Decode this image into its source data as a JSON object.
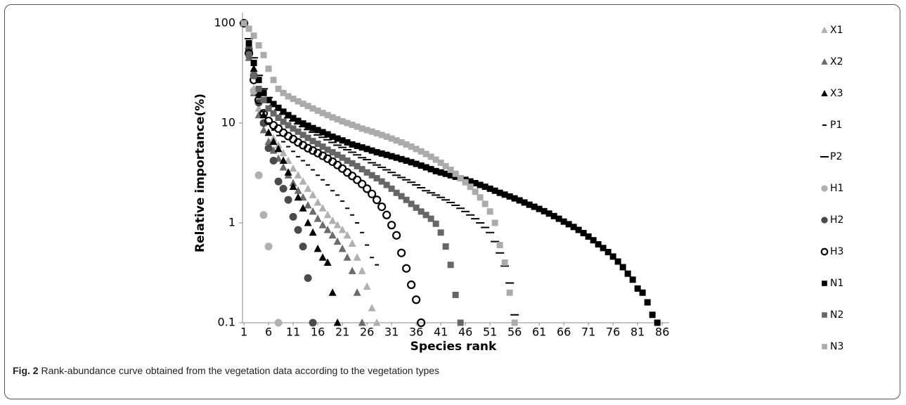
{
  "chart_data": {
    "type": "scatter",
    "y_label": "Relative importance(%)",
    "x_label": "Species rank",
    "caption_label": "Fig. 2",
    "caption": "Rank-abundance curve obtained from the vegetation data according to the vegetation types",
    "xlim": [
      0.7,
      87.4
    ],
    "xticks": [
      1,
      6,
      11,
      16,
      21,
      26,
      31,
      36,
      41,
      46,
      51,
      56,
      61,
      66,
      71,
      76,
      81,
      86
    ],
    "ylim": [
      0.1,
      100
    ],
    "yticks": [
      0.1,
      1,
      10,
      100
    ],
    "log_y": true,
    "grid": false,
    "legend": "right",
    "series": [
      {
        "name": "X1",
        "color": "#b0b0b0",
        "marker": "triangle",
        "x": [
          1,
          2,
          3,
          4,
          5,
          6,
          7,
          8,
          9,
          10,
          11,
          12,
          13,
          14,
          15,
          16,
          17,
          18,
          19,
          20,
          21,
          22,
          23,
          24,
          25,
          26,
          27,
          28
        ],
        "values": [
          100,
          50,
          22,
          14,
          10,
          8,
          7,
          6,
          5,
          4.2,
          3.5,
          3,
          2.6,
          2.2,
          1.9,
          1.6,
          1.4,
          1.2,
          1.05,
          0.95,
          0.85,
          0.75,
          0.62,
          0.45,
          0.33,
          0.23,
          0.14,
          0.1
        ]
      },
      {
        "name": "X2",
        "color": "#6b6b6b",
        "marker": "triangle",
        "x": [
          1,
          2,
          3,
          4,
          5,
          6,
          7,
          8,
          9,
          10,
          11,
          12,
          13,
          14,
          15,
          16,
          17,
          18,
          19,
          20,
          21,
          22,
          23,
          24,
          25
        ],
        "values": [
          100,
          45,
          20,
          12,
          8.5,
          6.5,
          5.3,
          4.4,
          3.6,
          3,
          2.5,
          2.1,
          1.8,
          1.5,
          1.3,
          1.1,
          0.95,
          0.85,
          0.75,
          0.65,
          0.55,
          0.45,
          0.33,
          0.2,
          0.1
        ]
      },
      {
        "name": "X3",
        "color": "#000000",
        "marker": "triangle",
        "x": [
          1,
          2,
          3,
          4,
          5,
          6,
          7,
          8,
          9,
          10,
          11,
          12,
          13,
          14,
          15,
          16,
          17,
          18,
          19,
          20
        ],
        "values": [
          100,
          60,
          35,
          20,
          12,
          8,
          6.5,
          5.5,
          4.2,
          3.2,
          2.3,
          1.8,
          1.4,
          1.0,
          0.8,
          0.55,
          0.45,
          0.4,
          0.2,
          0.1
        ]
      },
      {
        "name": "P1",
        "color": "#000000",
        "marker": "dash",
        "x": [
          1,
          2,
          3,
          4,
          5,
          6,
          7,
          8,
          9,
          10,
          11,
          12,
          13,
          14,
          15,
          16,
          17,
          18,
          19,
          20,
          21,
          22,
          23,
          24,
          25,
          26,
          27,
          28
        ],
        "values": [
          100,
          55,
          30,
          18,
          13,
          10,
          8.5,
          7.5,
          6.5,
          5.8,
          5.2,
          4.6,
          4.2,
          3.8,
          3.4,
          3.0,
          2.7,
          2.4,
          2.1,
          1.9,
          1.65,
          1.4,
          1.2,
          1.0,
          0.8,
          0.6,
          0.45,
          0.38
        ]
      },
      {
        "name": "P2",
        "color": "#000000",
        "marker": "dash-long",
        "x": [
          1,
          2,
          3,
          4,
          5,
          6,
          7,
          8,
          9,
          10,
          11,
          12,
          13,
          14,
          15,
          16,
          17,
          18,
          19,
          20,
          21,
          22,
          23,
          24,
          25,
          26,
          27,
          28,
          29,
          30,
          31,
          32,
          33,
          34,
          35,
          36,
          37,
          38,
          39,
          40,
          41,
          42,
          43,
          44,
          45,
          46,
          47,
          48,
          49,
          50,
          51,
          52,
          53,
          54,
          55,
          56
        ],
        "values": [
          100,
          70,
          45,
          30,
          22,
          18,
          15,
          13.5,
          12.3,
          11.3,
          10.5,
          9.8,
          9.2,
          8.6,
          8.1,
          7.6,
          7.2,
          6.8,
          6.4,
          6.0,
          5.7,
          5.4,
          5.1,
          4.8,
          4.5,
          4.3,
          4.0,
          3.8,
          3.6,
          3.4,
          3.2,
          3.0,
          2.85,
          2.7,
          2.55,
          2.4,
          2.25,
          2.1,
          2.0,
          1.9,
          1.8,
          1.7,
          1.6,
          1.5,
          1.4,
          1.3,
          1.2,
          1.1,
          1.0,
          0.9,
          0.8,
          0.65,
          0.5,
          0.37,
          0.25,
          0.12
        ]
      },
      {
        "name": "H1",
        "color": "#b0b0b0",
        "marker": "circle",
        "x": [
          1,
          3,
          4,
          5,
          6,
          8
        ],
        "values": [
          100,
          21,
          3,
          1.2,
          0.58,
          0.1
        ]
      },
      {
        "name": "H2",
        "color": "#4a4a4a",
        "marker": "circle",
        "x": [
          1,
          2,
          3,
          4,
          5,
          6,
          7,
          8,
          9,
          10,
          11,
          12,
          13,
          14,
          15
        ],
        "values": [
          100,
          55,
          30,
          16,
          10,
          5.6,
          4.2,
          2.6,
          2.2,
          1.7,
          1.15,
          0.85,
          0.58,
          0.28,
          0.1
        ]
      },
      {
        "name": "H3",
        "color": "#000000",
        "marker": "open-circle",
        "x": [
          1,
          2,
          3,
          4,
          5,
          6,
          7,
          8,
          9,
          10,
          11,
          12,
          13,
          14,
          15,
          16,
          17,
          18,
          19,
          20,
          21,
          22,
          23,
          24,
          25,
          26,
          27,
          28,
          29,
          30,
          31,
          32,
          33,
          34,
          35,
          36,
          37
        ],
        "values": [
          100,
          50,
          27,
          17,
          12.5,
          10.5,
          9.5,
          8.8,
          8.0,
          7.4,
          6.9,
          6.4,
          6.0,
          5.6,
          5.3,
          5.0,
          4.7,
          4.4,
          4.1,
          3.8,
          3.5,
          3.2,
          2.95,
          2.7,
          2.45,
          2.2,
          1.95,
          1.7,
          1.45,
          1.2,
          0.95,
          0.75,
          0.5,
          0.35,
          0.24,
          0.17,
          0.1
        ]
      },
      {
        "name": "N1",
        "color": "#000000",
        "marker": "square",
        "x": [
          1,
          2,
          3,
          4,
          5,
          6,
          7,
          8,
          9,
          10,
          11,
          12,
          13,
          14,
          15,
          16,
          17,
          18,
          19,
          20,
          21,
          22,
          23,
          24,
          25,
          26,
          27,
          28,
          29,
          30,
          31,
          32,
          33,
          34,
          35,
          36,
          37,
          38,
          39,
          40,
          41,
          42,
          43,
          44,
          45,
          46,
          47,
          48,
          49,
          50,
          51,
          52,
          53,
          54,
          55,
          56,
          57,
          58,
          59,
          60,
          61,
          62,
          63,
          64,
          65,
          66,
          67,
          68,
          69,
          70,
          71,
          72,
          73,
          74,
          75,
          76,
          77,
          78,
          79,
          80,
          81,
          82,
          83,
          84,
          85
        ],
        "values": [
          100,
          63,
          40,
          27,
          20,
          17,
          15.5,
          14.2,
          13,
          12,
          11.2,
          10.5,
          9.9,
          9.4,
          8.9,
          8.5,
          8.1,
          7.7,
          7.3,
          7.0,
          6.7,
          6.4,
          6.1,
          5.9,
          5.7,
          5.5,
          5.3,
          5.1,
          4.95,
          4.8,
          4.65,
          4.5,
          4.35,
          4.2,
          4.05,
          3.9,
          3.75,
          3.6,
          3.45,
          3.3,
          3.2,
          3.1,
          3.0,
          2.9,
          2.8,
          2.7,
          2.6,
          2.5,
          2.4,
          2.3,
          2.2,
          2.1,
          2.0,
          1.92,
          1.84,
          1.76,
          1.68,
          1.6,
          1.52,
          1.45,
          1.38,
          1.31,
          1.24,
          1.17,
          1.1,
          1.03,
          0.97,
          0.91,
          0.85,
          0.79,
          0.73,
          0.67,
          0.61,
          0.56,
          0.51,
          0.46,
          0.41,
          0.36,
          0.31,
          0.27,
          0.22,
          0.2,
          0.16,
          0.12,
          0.1
        ]
      },
      {
        "name": "N2",
        "color": "#666666",
        "marker": "square",
        "x": [
          1,
          2,
          3,
          4,
          5,
          6,
          7,
          8,
          9,
          10,
          11,
          12,
          13,
          14,
          15,
          16,
          17,
          18,
          19,
          20,
          21,
          22,
          23,
          24,
          25,
          26,
          27,
          28,
          29,
          30,
          31,
          32,
          33,
          34,
          35,
          36,
          37,
          38,
          39,
          40,
          41,
          42,
          43,
          44,
          45
        ],
        "values": [
          100,
          48,
          30,
          22,
          17,
          14,
          12.5,
          11.3,
          10.3,
          9.5,
          8.8,
          8.2,
          7.6,
          7.1,
          6.6,
          6.2,
          5.8,
          5.4,
          5.1,
          4.8,
          4.5,
          4.2,
          3.95,
          3.7,
          3.45,
          3.2,
          3.0,
          2.8,
          2.6,
          2.4,
          2.2,
          2.0,
          1.85,
          1.7,
          1.55,
          1.42,
          1.3,
          1.2,
          1.1,
          0.98,
          0.8,
          0.58,
          0.38,
          0.19,
          0.1
        ]
      },
      {
        "name": "N3",
        "color": "#ababab",
        "marker": "square",
        "x": [
          1,
          2,
          3,
          4,
          5,
          6,
          7,
          8,
          9,
          10,
          11,
          12,
          13,
          14,
          15,
          16,
          17,
          18,
          19,
          20,
          21,
          22,
          23,
          24,
          25,
          26,
          27,
          28,
          29,
          30,
          31,
          32,
          33,
          34,
          35,
          36,
          37,
          38,
          39,
          40,
          41,
          42,
          43,
          44,
          45,
          46,
          47,
          48,
          49,
          50,
          51,
          52,
          53,
          54,
          55,
          56
        ],
        "values": [
          100,
          88,
          75,
          60,
          48,
          35,
          27,
          22,
          20,
          18.5,
          17.5,
          16.5,
          15.6,
          14.8,
          14,
          13.3,
          12.6,
          12,
          11.4,
          10.9,
          10.4,
          10,
          9.6,
          9.2,
          8.8,
          8.5,
          8.2,
          7.9,
          7.6,
          7.3,
          7.0,
          6.7,
          6.4,
          6.1,
          5.8,
          5.5,
          5.2,
          4.9,
          4.6,
          4.3,
          4.0,
          3.7,
          3.4,
          3.1,
          2.8,
          2.55,
          2.3,
          2.05,
          1.8,
          1.55,
          1.3,
          1.0,
          0.6,
          0.4,
          0.2,
          0.1
        ]
      }
    ]
  }
}
